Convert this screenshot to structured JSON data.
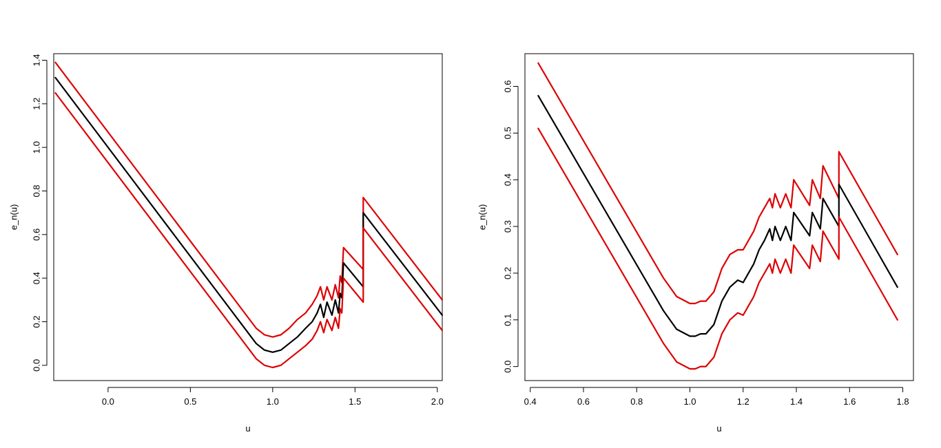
{
  "chart_data": [
    {
      "type": "line",
      "title": "",
      "xlabel": "u",
      "ylabel": "e_n(u)",
      "xlim": [
        -0.33,
        2.03
      ],
      "ylim": [
        -0.07,
        1.43
      ],
      "xticks": [
        0.0,
        0.5,
        1.0,
        1.5,
        2.0
      ],
      "xtick_labels": [
        "0.0",
        "0.5",
        "1.0",
        "1.5",
        "2.0"
      ],
      "yticks": [
        0.0,
        0.2,
        0.4,
        0.6,
        0.8,
        1.0,
        1.2,
        1.4
      ],
      "ytick_labels": [
        "0.0",
        "0.2",
        "0.4",
        "0.6",
        "0.8",
        "1.0",
        "1.2",
        "1.4"
      ],
      "grid": false,
      "series": [
        {
          "role": "upper-band",
          "color": "#dd0000",
          "points": [
            [
              -0.32,
              1.39
            ],
            [
              0.9,
              0.17
            ],
            [
              0.95,
              0.14
            ],
            [
              1.0,
              0.13
            ],
            [
              1.05,
              0.14
            ],
            [
              1.1,
              0.17
            ],
            [
              1.15,
              0.21
            ],
            [
              1.2,
              0.24
            ],
            [
              1.24,
              0.28
            ],
            [
              1.27,
              0.32
            ],
            [
              1.29,
              0.36
            ],
            [
              1.31,
              0.3
            ],
            [
              1.33,
              0.36
            ],
            [
              1.36,
              0.3
            ],
            [
              1.38,
              0.37
            ],
            [
              1.4,
              0.31
            ],
            [
              1.41,
              0.41
            ],
            [
              1.42,
              0.38
            ],
            [
              1.43,
              0.54
            ],
            [
              1.55,
              0.44
            ],
            [
              1.55,
              0.77
            ],
            [
              2.03,
              0.3
            ]
          ]
        },
        {
          "role": "estimate",
          "color": "#000000",
          "points": [
            [
              -0.32,
              1.32
            ],
            [
              0.9,
              0.1
            ],
            [
              0.95,
              0.07
            ],
            [
              1.0,
              0.06
            ],
            [
              1.05,
              0.07
            ],
            [
              1.1,
              0.1
            ],
            [
              1.15,
              0.13
            ],
            [
              1.2,
              0.17
            ],
            [
              1.24,
              0.2
            ],
            [
              1.27,
              0.24
            ],
            [
              1.29,
              0.28
            ],
            [
              1.31,
              0.22
            ],
            [
              1.33,
              0.29
            ],
            [
              1.36,
              0.23
            ],
            [
              1.38,
              0.3
            ],
            [
              1.4,
              0.24
            ],
            [
              1.41,
              0.33
            ],
            [
              1.42,
              0.31
            ],
            [
              1.43,
              0.47
            ],
            [
              1.55,
              0.36
            ],
            [
              1.55,
              0.7
            ],
            [
              2.03,
              0.23
            ]
          ]
        },
        {
          "role": "lower-band",
          "color": "#dd0000",
          "points": [
            [
              -0.32,
              1.25
            ],
            [
              0.9,
              0.03
            ],
            [
              0.95,
              0.0
            ],
            [
              1.0,
              -0.01
            ],
            [
              1.05,
              0.0
            ],
            [
              1.1,
              0.03
            ],
            [
              1.15,
              0.06
            ],
            [
              1.2,
              0.09
            ],
            [
              1.24,
              0.12
            ],
            [
              1.27,
              0.16
            ],
            [
              1.29,
              0.2
            ],
            [
              1.31,
              0.15
            ],
            [
              1.33,
              0.21
            ],
            [
              1.36,
              0.16
            ],
            [
              1.38,
              0.22
            ],
            [
              1.4,
              0.17
            ],
            [
              1.41,
              0.26
            ],
            [
              1.42,
              0.24
            ],
            [
              1.43,
              0.4
            ],
            [
              1.55,
              0.29
            ],
            [
              1.55,
              0.63
            ],
            [
              2.03,
              0.16
            ]
          ]
        }
      ]
    },
    {
      "type": "line",
      "title": "",
      "xlabel": "u",
      "ylabel": "e_n(u)",
      "xlim": [
        0.38,
        1.84
      ],
      "ylim": [
        -0.03,
        0.67
      ],
      "xticks": [
        0.4,
        0.6,
        0.8,
        1.0,
        1.2,
        1.4,
        1.6,
        1.8
      ],
      "xtick_labels": [
        "0.4",
        "0.6",
        "0.8",
        "1.0",
        "1.2",
        "1.4",
        "1.6",
        "1.8"
      ],
      "yticks": [
        0.0,
        0.1,
        0.2,
        0.3,
        0.4,
        0.5,
        0.6
      ],
      "ytick_labels": [
        "0.0",
        "0.1",
        "0.2",
        "0.3",
        "0.4",
        "0.5",
        "0.6"
      ],
      "grid": false,
      "series": [
        {
          "role": "upper-band",
          "color": "#dd0000",
          "points": [
            [
              0.43,
              0.65
            ],
            [
              0.9,
              0.19
            ],
            [
              0.95,
              0.15
            ],
            [
              1.0,
              0.135
            ],
            [
              1.02,
              0.135
            ],
            [
              1.04,
              0.14
            ],
            [
              1.06,
              0.14
            ],
            [
              1.09,
              0.16
            ],
            [
              1.12,
              0.21
            ],
            [
              1.15,
              0.24
            ],
            [
              1.18,
              0.25
            ],
            [
              1.2,
              0.25
            ],
            [
              1.22,
              0.27
            ],
            [
              1.24,
              0.29
            ],
            [
              1.26,
              0.32
            ],
            [
              1.28,
              0.34
            ],
            [
              1.3,
              0.36
            ],
            [
              1.31,
              0.34
            ],
            [
              1.32,
              0.37
            ],
            [
              1.34,
              0.34
            ],
            [
              1.36,
              0.37
            ],
            [
              1.38,
              0.34
            ],
            [
              1.39,
              0.4
            ],
            [
              1.45,
              0.345
            ],
            [
              1.46,
              0.4
            ],
            [
              1.49,
              0.36
            ],
            [
              1.5,
              0.43
            ],
            [
              1.56,
              0.36
            ],
            [
              1.56,
              0.46
            ],
            [
              1.78,
              0.24
            ]
          ]
        },
        {
          "role": "estimate",
          "color": "#000000",
          "points": [
            [
              0.43,
              0.58
            ],
            [
              0.9,
              0.12
            ],
            [
              0.95,
              0.08
            ],
            [
              1.0,
              0.065
            ],
            [
              1.02,
              0.065
            ],
            [
              1.04,
              0.07
            ],
            [
              1.06,
              0.07
            ],
            [
              1.09,
              0.09
            ],
            [
              1.12,
              0.14
            ],
            [
              1.15,
              0.17
            ],
            [
              1.18,
              0.185
            ],
            [
              1.2,
              0.18
            ],
            [
              1.22,
              0.2
            ],
            [
              1.24,
              0.22
            ],
            [
              1.26,
              0.25
            ],
            [
              1.28,
              0.27
            ],
            [
              1.3,
              0.295
            ],
            [
              1.31,
              0.27
            ],
            [
              1.32,
              0.3
            ],
            [
              1.34,
              0.27
            ],
            [
              1.36,
              0.3
            ],
            [
              1.38,
              0.27
            ],
            [
              1.39,
              0.33
            ],
            [
              1.45,
              0.28
            ],
            [
              1.46,
              0.33
            ],
            [
              1.49,
              0.295
            ],
            [
              1.5,
              0.36
            ],
            [
              1.56,
              0.3
            ],
            [
              1.56,
              0.39
            ],
            [
              1.78,
              0.17
            ]
          ]
        },
        {
          "role": "lower-band",
          "color": "#dd0000",
          "points": [
            [
              0.43,
              0.51
            ],
            [
              0.9,
              0.05
            ],
            [
              0.95,
              0.01
            ],
            [
              1.0,
              -0.005
            ],
            [
              1.02,
              -0.005
            ],
            [
              1.04,
              0.0
            ],
            [
              1.06,
              0.0
            ],
            [
              1.09,
              0.02
            ],
            [
              1.12,
              0.07
            ],
            [
              1.15,
              0.1
            ],
            [
              1.18,
              0.115
            ],
            [
              1.2,
              0.11
            ],
            [
              1.22,
              0.13
            ],
            [
              1.24,
              0.15
            ],
            [
              1.26,
              0.18
            ],
            [
              1.28,
              0.2
            ],
            [
              1.3,
              0.22
            ],
            [
              1.31,
              0.2
            ],
            [
              1.32,
              0.23
            ],
            [
              1.34,
              0.2
            ],
            [
              1.36,
              0.23
            ],
            [
              1.38,
              0.2
            ],
            [
              1.39,
              0.26
            ],
            [
              1.45,
              0.21
            ],
            [
              1.46,
              0.26
            ],
            [
              1.49,
              0.225
            ],
            [
              1.5,
              0.29
            ],
            [
              1.56,
              0.23
            ],
            [
              1.56,
              0.32
            ],
            [
              1.78,
              0.1
            ]
          ]
        }
      ]
    }
  ]
}
